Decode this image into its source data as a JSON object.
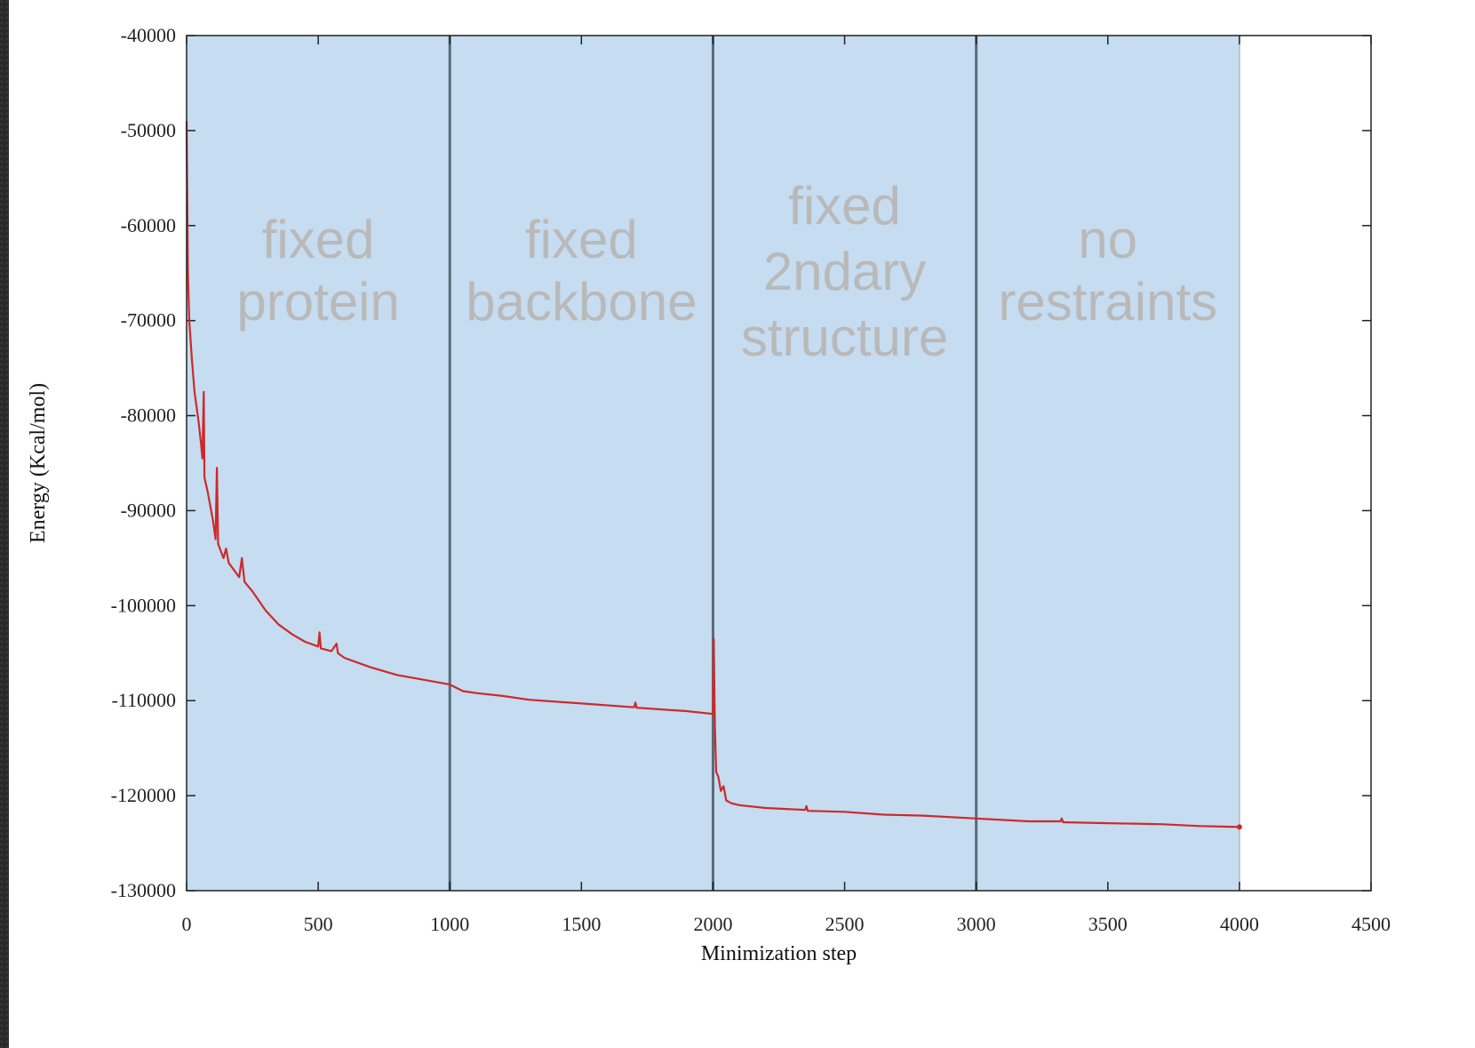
{
  "chart_data": {
    "type": "line",
    "xlabel": "Minimization step",
    "ylabel": "Energy (Kcal/mol)",
    "xlim": [
      0,
      4500
    ],
    "ylim": [
      -130000,
      -40000
    ],
    "x_ticks": [
      "0",
      "500",
      "1000",
      "1500",
      "2000",
      "2500",
      "3000",
      "3500",
      "4000",
      "4500"
    ],
    "y_ticks": [
      "-40000",
      "-50000",
      "-60000",
      "-70000",
      "-80000",
      "-90000",
      "-100000",
      "-110000",
      "-120000",
      "-130000"
    ],
    "regions": [
      {
        "x_start": 0,
        "x_end": 1000,
        "label": [
          "fixed",
          "protein"
        ]
      },
      {
        "x_start": 1000,
        "x_end": 2000,
        "label": [
          "fixed",
          "backbone"
        ]
      },
      {
        "x_start": 2000,
        "x_end": 3000,
        "label": [
          "fixed",
          "2ndary",
          "structure"
        ]
      },
      {
        "x_start": 3000,
        "x_end": 4000,
        "label": [
          "no",
          "restraints"
        ]
      }
    ],
    "colors": {
      "region_fill": "#c6dcf0",
      "region_divider": "#5a6a78",
      "series": "#cc2a2a"
    },
    "series": [
      {
        "values": [
          [
            0,
            -49000
          ],
          [
            5,
            -65000
          ],
          [
            10,
            -70000
          ],
          [
            20,
            -74000
          ],
          [
            30,
            -77500
          ],
          [
            45,
            -80500
          ],
          [
            55,
            -83000
          ],
          [
            60,
            -84500
          ],
          [
            65,
            -77500
          ],
          [
            68,
            -86500
          ],
          [
            80,
            -88000
          ],
          [
            100,
            -91000
          ],
          [
            110,
            -93000
          ],
          [
            115,
            -85500
          ],
          [
            120,
            -93500
          ],
          [
            140,
            -95000
          ],
          [
            150,
            -94000
          ],
          [
            160,
            -95500
          ],
          [
            200,
            -97000
          ],
          [
            210,
            -95000
          ],
          [
            220,
            -97500
          ],
          [
            250,
            -98500
          ],
          [
            300,
            -100500
          ],
          [
            350,
            -102000
          ],
          [
            400,
            -103000
          ],
          [
            450,
            -103800
          ],
          [
            500,
            -104300
          ],
          [
            505,
            -102800
          ],
          [
            510,
            -104500
          ],
          [
            550,
            -104800
          ],
          [
            570,
            -104000
          ],
          [
            575,
            -105000
          ],
          [
            600,
            -105500
          ],
          [
            700,
            -106500
          ],
          [
            800,
            -107300
          ],
          [
            900,
            -107800
          ],
          [
            1000,
            -108300
          ],
          [
            1050,
            -109000
          ],
          [
            1100,
            -109200
          ],
          [
            1200,
            -109500
          ],
          [
            1300,
            -109900
          ],
          [
            1500,
            -110300
          ],
          [
            1700,
            -110700
          ],
          [
            1705,
            -110200
          ],
          [
            1710,
            -110750
          ],
          [
            1900,
            -111100
          ],
          [
            2000,
            -111400
          ],
          [
            2003,
            -103500
          ],
          [
            2007,
            -112500
          ],
          [
            2012,
            -117500
          ],
          [
            2020,
            -118000
          ],
          [
            2030,
            -119500
          ],
          [
            2040,
            -119000
          ],
          [
            2050,
            -120500
          ],
          [
            2070,
            -120800
          ],
          [
            2100,
            -121000
          ],
          [
            2200,
            -121300
          ],
          [
            2350,
            -121500
          ],
          [
            2355,
            -121100
          ],
          [
            2360,
            -121600
          ],
          [
            2500,
            -121700
          ],
          [
            2650,
            -122000
          ],
          [
            2800,
            -122100
          ],
          [
            3000,
            -122400
          ],
          [
            3200,
            -122700
          ],
          [
            3320,
            -122700
          ],
          [
            3325,
            -122400
          ],
          [
            3330,
            -122800
          ],
          [
            3500,
            -122900
          ],
          [
            3700,
            -123000
          ],
          [
            3850,
            -123200
          ],
          [
            4000,
            -123300
          ]
        ]
      }
    ]
  }
}
